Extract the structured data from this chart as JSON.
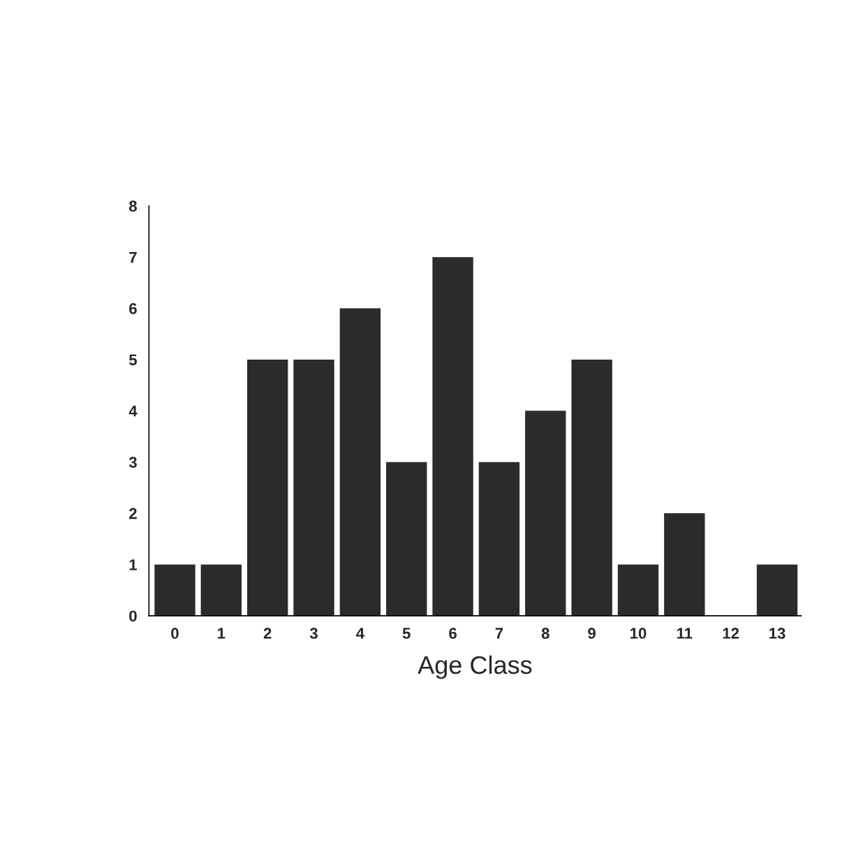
{
  "chart_data": {
    "type": "bar",
    "xlabel": "Age Class",
    "categories": [
      "0",
      "1",
      "2",
      "3",
      "4",
      "5",
      "6",
      "7",
      "8",
      "9",
      "10",
      "11",
      "12",
      "13"
    ],
    "values": [
      1,
      1,
      5,
      5,
      6,
      3,
      7,
      3,
      4,
      5,
      1,
      2,
      0,
      1
    ],
    "color": "#2b2b2b",
    "ylim": [
      0,
      8
    ],
    "yticks": [
      0,
      1,
      2,
      3,
      4,
      5,
      6,
      7,
      8
    ],
    "grid": false,
    "legend": false
  }
}
